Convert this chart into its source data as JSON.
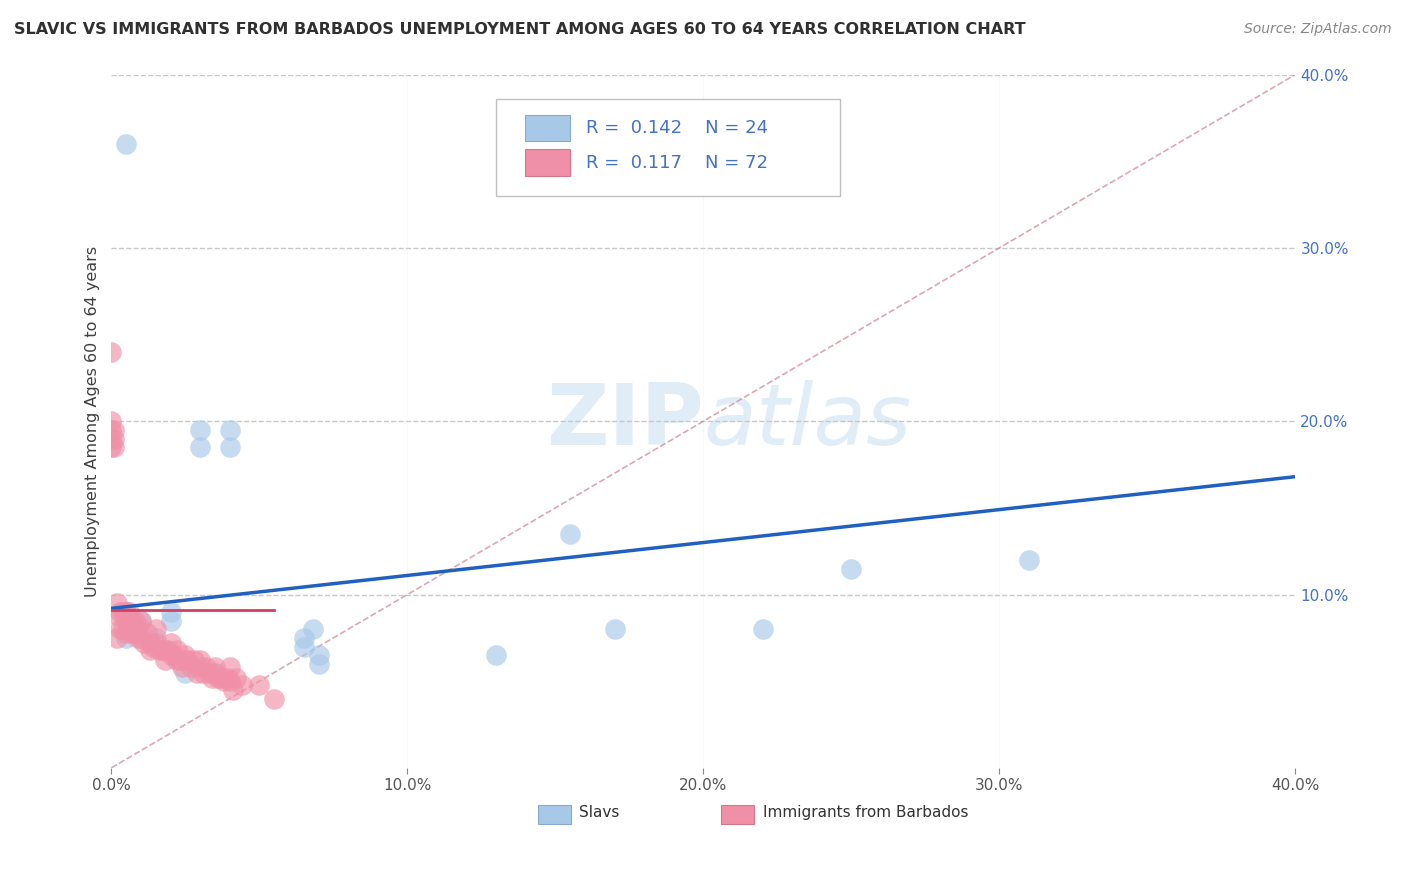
{
  "title": "SLAVIC VS IMMIGRANTS FROM BARBADOS UNEMPLOYMENT AMONG AGES 60 TO 64 YEARS CORRELATION CHART",
  "source": "Source: ZipAtlas.com",
  "ylabel": "Unemployment Among Ages 60 to 64 years",
  "xlim": [
    0.0,
    0.4
  ],
  "ylim": [
    0.0,
    0.4
  ],
  "xticks": [
    0.0,
    0.1,
    0.2,
    0.3,
    0.4
  ],
  "yticks": [
    0.1,
    0.2,
    0.3,
    0.4
  ],
  "xticklabels": [
    "0.0%",
    "10.0%",
    "20.0%",
    "30.0%",
    "40.0%"
  ],
  "yticklabels": [
    "10.0%",
    "20.0%",
    "30.0%",
    "40.0%"
  ],
  "legend_labels": [
    "Slavs",
    "Immigrants from Barbados"
  ],
  "slavs_R": "0.142",
  "slavs_N": "24",
  "barbados_R": "0.117",
  "barbados_N": "72",
  "slavs_color": "#a8c8e8",
  "barbados_color": "#f090a8",
  "slavs_line_color": "#2060c0",
  "barbados_line_color": "#d04060",
  "diagonal_color": "#d08090",
  "grid_color": "#c8c8c8",
  "tick_color": "#4472c4",
  "legend_text_color": "#4472c4",
  "title_color": "#303030",
  "slavs_scatter_x": [
    0.005,
    0.03,
    0.03,
    0.04,
    0.04,
    0.02,
    0.005,
    0.01,
    0.005,
    0.25,
    0.31,
    0.155,
    0.17,
    0.22,
    0.13,
    0.065,
    0.065,
    0.068,
    0.07,
    0.07,
    0.02,
    0.025,
    0.015,
    0.035
  ],
  "slavs_scatter_y": [
    0.36,
    0.195,
    0.185,
    0.195,
    0.185,
    0.09,
    0.09,
    0.085,
    0.075,
    0.115,
    0.12,
    0.135,
    0.08,
    0.08,
    0.065,
    0.075,
    0.07,
    0.08,
    0.065,
    0.06,
    0.085,
    0.055,
    0.075,
    0.055
  ],
  "barbados_scatter_x": [
    0.0,
    0.0,
    0.0,
    0.0,
    0.0,
    0.001,
    0.001,
    0.001,
    0.002,
    0.002,
    0.002,
    0.003,
    0.003,
    0.004,
    0.004,
    0.005,
    0.005,
    0.005,
    0.006,
    0.006,
    0.007,
    0.007,
    0.008,
    0.008,
    0.009,
    0.009,
    0.01,
    0.01,
    0.011,
    0.012,
    0.013,
    0.013,
    0.014,
    0.015,
    0.015,
    0.016,
    0.017,
    0.018,
    0.018,
    0.019,
    0.02,
    0.02,
    0.021,
    0.022,
    0.022,
    0.023,
    0.024,
    0.025,
    0.025,
    0.026,
    0.027,
    0.028,
    0.029,
    0.03,
    0.03,
    0.031,
    0.032,
    0.033,
    0.034,
    0.035,
    0.035,
    0.036,
    0.037,
    0.038,
    0.039,
    0.04,
    0.04,
    0.041,
    0.042,
    0.044,
    0.05,
    0.055
  ],
  "barbados_scatter_y": [
    0.24,
    0.2,
    0.195,
    0.19,
    0.185,
    0.195,
    0.19,
    0.185,
    0.095,
    0.088,
    0.075,
    0.09,
    0.08,
    0.09,
    0.08,
    0.09,
    0.085,
    0.078,
    0.09,
    0.082,
    0.085,
    0.078,
    0.085,
    0.078,
    0.082,
    0.075,
    0.085,
    0.075,
    0.072,
    0.078,
    0.072,
    0.068,
    0.07,
    0.08,
    0.072,
    0.068,
    0.068,
    0.068,
    0.062,
    0.068,
    0.072,
    0.065,
    0.065,
    0.068,
    0.062,
    0.062,
    0.058,
    0.065,
    0.062,
    0.062,
    0.058,
    0.062,
    0.055,
    0.062,
    0.058,
    0.055,
    0.058,
    0.055,
    0.052,
    0.058,
    0.055,
    0.052,
    0.052,
    0.05,
    0.052,
    0.058,
    0.05,
    0.045,
    0.052,
    0.048,
    0.048,
    0.04
  ],
  "slavs_line": [
    [
      0.0,
      0.4
    ],
    [
      0.092,
      0.168
    ]
  ],
  "barbados_line": [
    [
      0.0,
      0.055
    ],
    [
      0.091,
      0.091
    ]
  ],
  "diagonal_line": [
    [
      0.0,
      0.4
    ],
    [
      0.0,
      0.4
    ]
  ],
  "watermark_zip": "ZIP",
  "watermark_atlas": "atlas",
  "background_color": "#ffffff"
}
